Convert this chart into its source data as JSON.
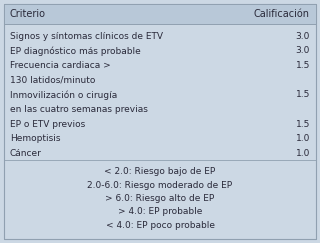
{
  "background_color": "#ccd8e4",
  "header_bg": "#b8c8d8",
  "header_left": "Criterio",
  "header_right": "Calificación",
  "rows": [
    {
      "left": "Signos y síntomas clínicos de ETV",
      "right": "3.0"
    },
    {
      "left": "EP diagnóstico más probable",
      "right": "3.0"
    },
    {
      "left": "Frecuencia cardiaca >",
      "right": "1.5"
    },
    {
      "left": "130 latidos/minuto",
      "right": ""
    },
    {
      "left": "Inmovilización o cirugía",
      "right": "1.5"
    },
    {
      "left": "en las cuatro semanas previas",
      "right": ""
    },
    {
      "left": "EP o ETV previos",
      "right": "1.5"
    },
    {
      "left": "Hemoptisis",
      "right": "1.0"
    },
    {
      "left": "Cáncer",
      "right": "1.0"
    }
  ],
  "footer_lines": [
    "< 2.0: Riesgo bajo de EP",
    "2.0-6.0: Riesgo moderado de EP",
    "> 6.0: Riesgo alto de EP",
    "> 4.0: EP probable",
    "< 4.0: EP poco probable"
  ],
  "font_size": 6.5,
  "header_font_size": 7.0,
  "text_color": "#2a2a3a",
  "border_color": "#90a0b0",
  "figsize": [
    3.2,
    2.43
  ],
  "dpi": 100
}
